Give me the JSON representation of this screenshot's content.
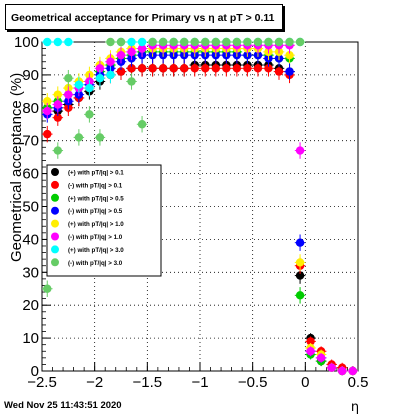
{
  "chart_data": {
    "type": "scatter",
    "title": "Geometrical acceptance for Primary vs   η at pT > 0.11",
    "xlabel": "η",
    "ylabel": "Geometrical acceptance (%)",
    "xlim": [
      -2.5,
      0.5
    ],
    "ylim": [
      0,
      100
    ],
    "xticks": [
      -2.5,
      -2,
      -1.5,
      -1,
      -0.5,
      0,
      0.5
    ],
    "xtick_labels": [
      "−2.5",
      "−2",
      "−1.5",
      "−1",
      "−0.5",
      "0",
      "0.5"
    ],
    "yticks": [
      0,
      10,
      20,
      30,
      40,
      50,
      60,
      70,
      80,
      90,
      100
    ],
    "ytick_labels": [
      "0",
      "10",
      "20",
      "30",
      "40",
      "50",
      "60",
      "70",
      "80",
      "90",
      "100"
    ],
    "grid": true,
    "legend_position": "left-middle",
    "series": [
      {
        "name": "(+) with pT/|q| > 0.1",
        "color": "#000000",
        "x": [
          -2.45,
          -2.35,
          -2.25,
          -2.15,
          -2.05,
          -1.95,
          -1.85,
          -1.75,
          -1.65,
          -1.55,
          -1.45,
          -1.35,
          -1.25,
          -1.15,
          -1.05,
          -0.95,
          -0.85,
          -0.75,
          -0.65,
          -0.55,
          -0.45,
          -0.35,
          -0.25,
          -0.15,
          -0.05,
          0.05,
          0.15,
          0.25,
          0.35,
          0.45
        ],
        "y": [
          80,
          79,
          81,
          83,
          85,
          88,
          90,
          91,
          92,
          92,
          92,
          92,
          92,
          92,
          93,
          93,
          93,
          93,
          93,
          93,
          93,
          93,
          92,
          91,
          29,
          10,
          3,
          1,
          0,
          0
        ]
      },
      {
        "name": "(-) with pT/|q| > 0.1",
        "color": "#ff0000",
        "x": [
          -2.45,
          -2.35,
          -2.25,
          -2.15,
          -2.05,
          -1.95,
          -1.85,
          -1.75,
          -1.65,
          -1.55,
          -1.45,
          -1.35,
          -1.25,
          -1.15,
          -1.05,
          -0.95,
          -0.85,
          -0.75,
          -0.65,
          -0.55,
          -0.45,
          -0.35,
          -0.25,
          -0.15,
          -0.05,
          0.05,
          0.15,
          0.25,
          0.35,
          0.45
        ],
        "y": [
          72,
          77,
          80,
          83,
          86,
          89,
          90,
          91,
          92,
          92,
          92,
          92,
          92,
          92,
          92,
          92,
          92,
          92,
          92,
          92,
          92,
          92,
          91,
          90,
          32,
          9,
          6,
          2,
          1,
          0
        ]
      },
      {
        "name": "(+) with pT/|q| > 0.5",
        "color": "#00cc00",
        "x": [
          -2.45,
          -2.35,
          -2.25,
          -2.15,
          -2.05,
          -1.95,
          -1.85,
          -1.75,
          -1.65,
          -1.55,
          -1.45,
          -1.35,
          -1.25,
          -1.15,
          -1.05,
          -0.95,
          -0.85,
          -0.75,
          -0.65,
          -0.55,
          -0.45,
          -0.35,
          -0.25,
          -0.15,
          -0.05,
          0.05,
          0.15,
          0.25,
          0.35,
          0.45
        ],
        "y": [
          80,
          82,
          84,
          86,
          88,
          91,
          93,
          95,
          96,
          97,
          97,
          97,
          97,
          97,
          97,
          97,
          97,
          97,
          97,
          96,
          96,
          96,
          95,
          95,
          23,
          5,
          3,
          1,
          0,
          0
        ]
      },
      {
        "name": "(-) with pT/|q| > 0.5",
        "color": "#0000ff",
        "x": [
          -2.45,
          -2.35,
          -2.25,
          -2.15,
          -2.05,
          -1.95,
          -1.85,
          -1.75,
          -1.65,
          -1.55,
          -1.45,
          -1.35,
          -1.25,
          -1.15,
          -1.05,
          -0.95,
          -0.85,
          -0.75,
          -0.65,
          -0.55,
          -0.45,
          -0.35,
          -0.25,
          -0.15,
          -0.05,
          0.05,
          0.15,
          0.25,
          0.35,
          0.45
        ],
        "y": [
          78,
          80,
          82,
          84,
          87,
          90,
          92,
          94,
          95,
          96,
          96,
          96,
          96,
          96,
          96,
          96,
          96,
          96,
          96,
          96,
          96,
          95,
          95,
          91,
          39,
          6,
          4,
          1,
          0,
          0
        ]
      },
      {
        "name": "(+) with pT/|q| > 1.0",
        "color": "#ffee00",
        "x": [
          -2.45,
          -2.35,
          -2.25,
          -2.15,
          -2.05,
          -1.95,
          -1.85,
          -1.75,
          -1.65,
          -1.55,
          -1.45,
          -1.35,
          -1.25,
          -1.15,
          -1.05,
          -0.95,
          -0.85,
          -0.75,
          -0.65,
          -0.55,
          -0.45,
          -0.35,
          -0.25,
          -0.15,
          -0.05,
          0.05,
          0.15,
          0.25,
          0.35,
          0.45
        ],
        "y": [
          82,
          84,
          86,
          88,
          90,
          93,
          95,
          97,
          98,
          98,
          98,
          98,
          98,
          98,
          98,
          98,
          98,
          98,
          98,
          98,
          98,
          97,
          97,
          96,
          33,
          7,
          5,
          1,
          0,
          0
        ]
      },
      {
        "name": "(-) with pT/|q| > 1.0",
        "color": "#ff00ff",
        "x": [
          -2.45,
          -2.35,
          -2.25,
          -2.15,
          -2.05,
          -1.95,
          -1.85,
          -1.75,
          -1.65,
          -1.55,
          -1.45,
          -1.35,
          -1.25,
          -1.15,
          -1.05,
          -0.95,
          -0.85,
          -0.75,
          -0.65,
          -0.55,
          -0.45,
          -0.35,
          -0.25,
          -0.15,
          -0.05,
          0.05,
          0.15,
          0.25,
          0.35,
          0.45
        ],
        "y": [
          79,
          81,
          84,
          86,
          88,
          92,
          94,
          96,
          97,
          98,
          99,
          99,
          99,
          99,
          99,
          99,
          99,
          99,
          99,
          99,
          99,
          99,
          99,
          99,
          67,
          6,
          4,
          1,
          0,
          0
        ]
      },
      {
        "name": "(+) with pT/|q| > 3.0",
        "color": "#00ffff",
        "x": [
          -2.45,
          -2.35,
          -2.25,
          -2.15,
          -2.05,
          -1.95,
          -1.85,
          -1.75,
          -1.65,
          -1.55,
          -1.45,
          -1.35,
          -1.25,
          -1.15,
          -1.05,
          -0.95,
          -0.85,
          -0.75,
          -0.65,
          -0.55,
          -0.45,
          -0.35,
          -0.25,
          -0.15,
          -0.05
        ],
        "y": [
          100,
          100,
          100,
          87,
          86,
          89,
          90,
          100,
          100,
          100,
          100,
          100,
          100,
          100,
          100,
          100,
          100,
          100,
          100,
          100,
          100,
          100,
          100,
          100,
          100
        ]
      },
      {
        "name": "(-) with pT/|q| > 3.0",
        "color": "#66cc66",
        "x": [
          -2.45,
          -2.35,
          -2.25,
          -2.15,
          -2.05,
          -1.95,
          -1.85,
          -1.75,
          -1.65,
          -1.55,
          -1.45,
          -1.35,
          -1.25,
          -1.15,
          -1.05,
          -0.95,
          -0.85,
          -0.75,
          -0.65,
          -0.55,
          -0.45,
          -0.35,
          -0.25,
          -0.15,
          -0.05
        ],
        "y": [
          25,
          67,
          89,
          71,
          78,
          71,
          100,
          100,
          88,
          75,
          100,
          100,
          100,
          100,
          100,
          100,
          100,
          100,
          100,
          100,
          100,
          100,
          100,
          100,
          100
        ]
      }
    ]
  },
  "footer": {
    "date": "Wed Nov 25 11:43:51 2020"
  }
}
